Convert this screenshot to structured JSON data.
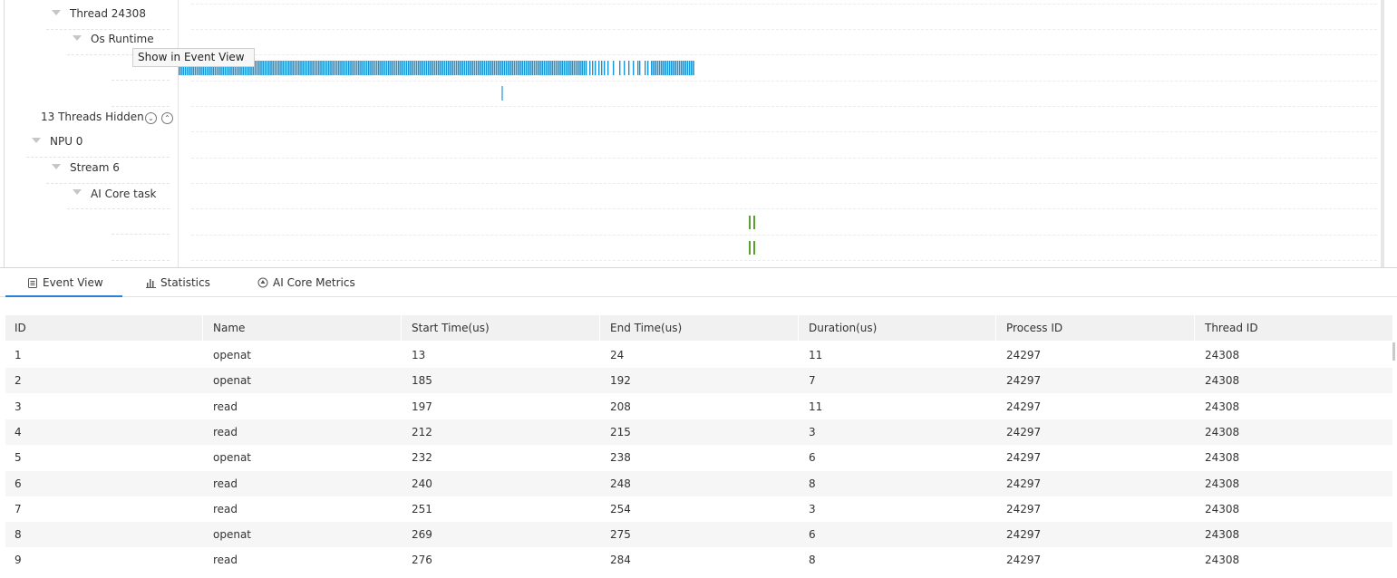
{
  "timeline": {
    "tree": {
      "thread": {
        "label": "Thread 24308"
      },
      "os_runtime": {
        "label": "Os Runtime"
      },
      "hidden_threads": {
        "label": "13 Threads Hidden",
        "expand_icon": "double-chevron-down-icon",
        "collapse_icon": "double-chevron-up-icon"
      },
      "npu": {
        "label": "NPU 0"
      },
      "stream": {
        "label": "Stream 6"
      },
      "ai_core_task": {
        "label": "AI Core task"
      }
    },
    "tooltip": {
      "text": "Show in Event View"
    },
    "colors": {
      "os_runtime_event": "#1a96d4",
      "ai_core_event": "#5aa02c"
    }
  },
  "tabs": [
    {
      "label": "Event View",
      "icon": "list-icon",
      "active": true
    },
    {
      "label": "Statistics",
      "icon": "bar-chart-icon",
      "active": false
    },
    {
      "label": "AI Core Metrics",
      "icon": "metrics-icon",
      "active": false
    }
  ],
  "event_table": {
    "columns": [
      "ID",
      "Name",
      "Start Time(us)",
      "End Time(us)",
      "Duration(us)",
      "Process ID",
      "Thread ID"
    ],
    "rows": [
      [
        "1",
        "openat",
        "13",
        "24",
        "11",
        "24297",
        "24308"
      ],
      [
        "2",
        "openat",
        "185",
        "192",
        "7",
        "24297",
        "24308"
      ],
      [
        "3",
        "read",
        "197",
        "208",
        "11",
        "24297",
        "24308"
      ],
      [
        "4",
        "read",
        "212",
        "215",
        "3",
        "24297",
        "24308"
      ],
      [
        "5",
        "openat",
        "232",
        "238",
        "6",
        "24297",
        "24308"
      ],
      [
        "6",
        "read",
        "240",
        "248",
        "8",
        "24297",
        "24308"
      ],
      [
        "7",
        "read",
        "251",
        "254",
        "3",
        "24297",
        "24308"
      ],
      [
        "8",
        "openat",
        "269",
        "275",
        "6",
        "24297",
        "24308"
      ],
      [
        "9",
        "read",
        "276",
        "284",
        "8",
        "24297",
        "24308"
      ]
    ]
  }
}
